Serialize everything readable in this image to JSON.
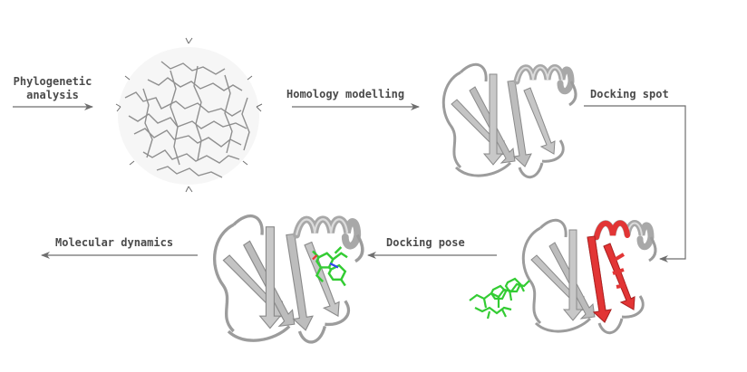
{
  "steps": [
    {
      "id": "phylo",
      "label_line1": "Phylogenetic",
      "label_line2": "analysis"
    },
    {
      "id": "homology",
      "label": "Homology modelling"
    },
    {
      "id": "spot",
      "label": "Docking spot"
    },
    {
      "id": "pose",
      "label": "Docking pose"
    },
    {
      "id": "md",
      "label": "Molecular dynamics"
    }
  ],
  "colors": {
    "text": "#4a4a4a",
    "arrow": "#6e6e6e",
    "protein": "#b9b9b9",
    "protein_edge": "#8a8a8a",
    "site": "#e23535",
    "ligand": "#33cc33"
  },
  "images": [
    {
      "name": "sticks-structure-icon"
    },
    {
      "name": "protein-cartoon-icon"
    },
    {
      "name": "protein-docking-spot-icon"
    },
    {
      "name": "ligand-molecule-icon"
    },
    {
      "name": "protein-ligand-complex-icon"
    }
  ]
}
